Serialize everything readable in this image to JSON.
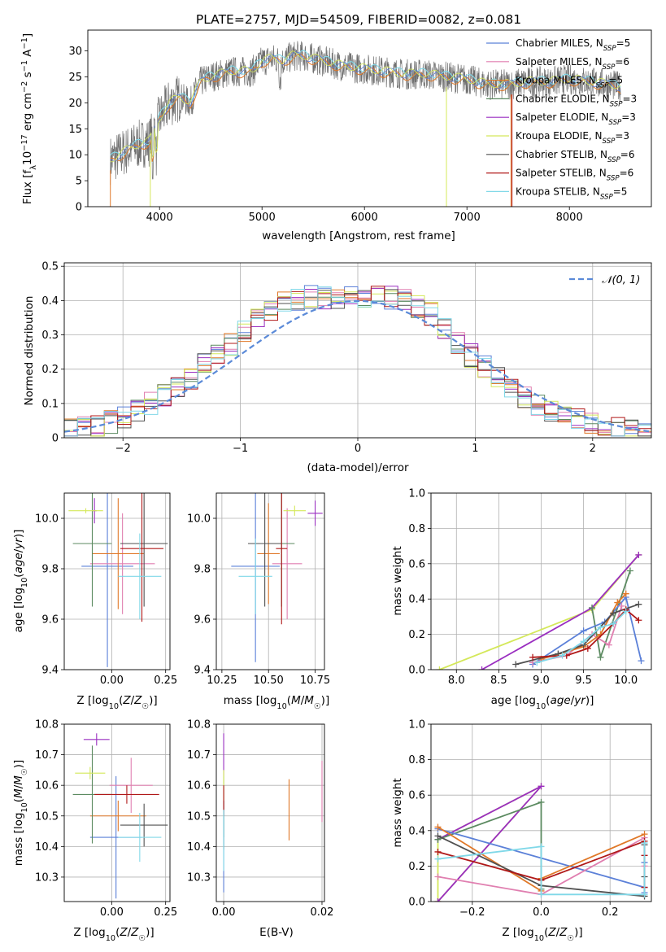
{
  "colors": {
    "Chabrier MILES": "#5b80d8",
    "Salpeter MILES": "#e07fb0",
    "Kroupa MILES": "#e07828",
    "Chabrier ELODIE": "#5b8a60",
    "Salpeter ELODIE": "#9a2ec0",
    "Kroupa ELODIE": "#d4e85a",
    "Chabrier STELIB": "#505050",
    "Salpeter STELIB": "#b01818",
    "Kroupa STELIB": "#80d8e8",
    "gaussian": "#5b8ad8"
  },
  "chart_data": [
    {
      "id": "spectrum",
      "type": "line",
      "title": "PLATE=2757, MJD=54509, FIBERID=0082, z=0.081",
      "xlabel": "wavelength [Angstrom, rest frame]",
      "ylabel": "Flux [fλ10⁻¹⁷ erg cm⁻² s⁻¹ A⁻¹]",
      "xlim": [
        3300,
        8800
      ],
      "ylim": [
        0,
        34
      ],
      "xticks": [
        4000,
        5000,
        6000,
        7000,
        8000
      ],
      "yticks": [
        0,
        5,
        10,
        15,
        20,
        25,
        30
      ],
      "grid": false,
      "legend_position": "top-right",
      "legend": [
        {
          "label": "Chabrier MILES, N",
          "sub": "SSP",
          "n": "=5",
          "color": "#5b80d8"
        },
        {
          "label": "Salpeter MILES, N",
          "sub": "SSP",
          "n": "=6",
          "color": "#e07fb0"
        },
        {
          "label": "Kroupa MILES, N",
          "sub": "SSP",
          "n": "=5",
          "color": "#e07828"
        },
        {
          "label": "Chabrier ELODIE, N",
          "sub": "SSP",
          "n": "=3",
          "color": "#5b8a60"
        },
        {
          "label": "Salpeter ELODIE, N",
          "sub": "SSP",
          "n": "=3",
          "color": "#9a2ec0"
        },
        {
          "label": "Kroupa ELODIE, N",
          "sub": "SSP",
          "n": "=3",
          "color": "#d4e85a"
        },
        {
          "label": "Chabrier STELIB, N",
          "sub": "SSP",
          "n": "=6",
          "color": "#505050"
        },
        {
          "label": "Salpeter STELIB, N",
          "sub": "SSP",
          "n": "=6",
          "color": "#b01818"
        },
        {
          "label": "Kroupa STELIB, N",
          "sub": "SSP",
          "n": "=5",
          "color": "#80d8e8"
        }
      ],
      "continuum": {
        "x": [
          3520,
          3700,
          3800,
          3900,
          4000,
          4100,
          4200,
          4300,
          4400,
          4500,
          4600,
          4700,
          4800,
          4900,
          5000,
          5100,
          5200,
          5300,
          5400,
          5500,
          5600,
          5800,
          6000,
          6200,
          6400,
          6600,
          6800,
          7000,
          7200,
          7400,
          7600,
          7800,
          8000,
          8200,
          8400,
          8500
        ],
        "y": [
          9,
          11,
          12,
          12.5,
          17,
          20,
          21,
          20,
          24,
          25,
          25.5,
          26,
          26,
          26,
          28,
          28.5,
          28,
          29,
          29,
          28.5,
          28,
          27,
          26.5,
          26,
          25.5,
          25.5,
          25,
          24.5,
          23.5,
          23.5,
          24,
          24,
          24.5,
          24,
          23.5,
          23
        ]
      }
    },
    {
      "id": "residuals",
      "type": "step",
      "xlabel": "(data-model)/error",
      "ylabel": "Normed distribution",
      "xlim": [
        -2.5,
        2.5
      ],
      "ylim": [
        0,
        0.51
      ],
      "xticks": [
        -2,
        -1,
        0,
        1,
        2
      ],
      "yticks": [
        0.0,
        0.1,
        0.2,
        0.3,
        0.4,
        0.5
      ],
      "grid": true,
      "legend_position": "top-right",
      "legend": [
        {
          "label": "𝒩(0, 1)",
          "color": "#5b8ad8",
          "style": "dashed"
        }
      ],
      "base_curve": [
        0.02,
        0.03,
        0.035,
        0.045,
        0.06,
        0.08,
        0.1,
        0.12,
        0.15,
        0.17,
        0.21,
        0.24,
        0.27,
        0.31,
        0.35,
        0.37,
        0.39,
        0.4,
        0.41,
        0.41,
        0.4,
        0.41,
        0.41,
        0.42,
        0.41,
        0.4,
        0.38,
        0.36,
        0.32,
        0.28,
        0.24,
        0.21,
        0.18,
        0.15,
        0.12,
        0.1,
        0.08,
        0.065,
        0.05,
        0.04,
        0.03,
        0.025,
        0.02,
        0.02
      ]
    },
    {
      "id": "age-vs-Z",
      "type": "errorbar",
      "xlabel": "Z [log₁₀(Z/Z☉)]",
      "ylabel": "age  [log₁₀(age/yr)]",
      "xlim": [
        -0.22,
        0.27
      ],
      "ylim": [
        9.4,
        10.1
      ],
      "xticks": [
        0.0,
        0.25
      ],
      "xticklabels": [
        "0.00",
        "0.25"
      ],
      "yticks": [
        9.4,
        9.6,
        9.8,
        10.0
      ],
      "yticklabels": [
        "9.4",
        "9.6",
        "9.8",
        "10.0"
      ],
      "grid": true,
      "points": [
        {
          "series": "Chabrier MILES",
          "x": -0.02,
          "xerr": 0.12,
          "y": 9.81,
          "yerr": 0.4
        },
        {
          "series": "Salpeter MILES",
          "x": 0.05,
          "xerr": 0.15,
          "y": 9.82,
          "yerr": 0.2
        },
        {
          "series": "Kroupa MILES",
          "x": 0.03,
          "xerr": 0.12,
          "y": 9.86,
          "yerr": 0.22
        },
        {
          "series": "Chabrier ELODIE",
          "x": -0.09,
          "xerr": 0.09,
          "y": 9.9,
          "yerr": 0.25
        },
        {
          "series": "Salpeter ELODIE",
          "x": -0.08,
          "xerr": 0.01,
          "y": 10.03,
          "yerr": 0.05
        },
        {
          "series": "Kroupa ELODIE",
          "x": -0.12,
          "xerr": 0.08,
          "y": 10.03,
          "yerr": 0.01
        },
        {
          "series": "Chabrier STELIB",
          "x": 0.15,
          "xerr": 0.11,
          "y": 9.9,
          "yerr": 0.25
        },
        {
          "series": "Salpeter STELIB",
          "x": 0.14,
          "xerr": 0.1,
          "y": 9.88,
          "yerr": 0.29
        },
        {
          "series": "Kroupa STELIB",
          "x": 0.13,
          "xerr": 0.1,
          "y": 9.77,
          "yerr": 0.17
        }
      ]
    },
    {
      "id": "age-vs-mass",
      "type": "errorbar",
      "xlabel": "mass [log₁₀(M/M☉)]",
      "ylabel": "",
      "xlim": [
        10.22,
        10.8
      ],
      "ylim": [
        9.4,
        10.1
      ],
      "xticks": [
        10.25,
        10.5,
        10.75
      ],
      "xticklabels": [
        "10.25",
        "10.50",
        "10.75"
      ],
      "yticks": [
        9.4,
        9.6,
        9.8,
        10.0
      ],
      "yticklabels": [
        "9.4",
        "9.6",
        "9.8",
        "10.0"
      ],
      "grid": true,
      "points": [
        {
          "series": "Chabrier MILES",
          "x": 10.43,
          "xerr": 0.13,
          "y": 9.81,
          "yerr": 0.38
        },
        {
          "series": "Salpeter MILES",
          "x": 10.6,
          "xerr": 0.08,
          "y": 9.82,
          "yerr": 0.22
        },
        {
          "series": "Kroupa MILES",
          "x": 10.5,
          "xerr": 0.06,
          "y": 9.86,
          "yerr": 0.2
        },
        {
          "series": "Chabrier ELODIE",
          "x": 10.57,
          "xerr": 0.07,
          "y": 9.9,
          "yerr": 0.25
        },
        {
          "series": "Salpeter ELODIE",
          "x": 10.75,
          "xerr": 0.04,
          "y": 10.02,
          "yerr": 0.05
        },
        {
          "series": "Kroupa ELODIE",
          "x": 10.64,
          "xerr": 0.06,
          "y": 10.03,
          "yerr": 0.02
        },
        {
          "series": "Chabrier STELIB",
          "x": 10.48,
          "xerr": 0.09,
          "y": 9.9,
          "yerr": 0.25
        },
        {
          "series": "Salpeter STELIB",
          "x": 10.57,
          "xerr": 0.03,
          "y": 9.88,
          "yerr": 0.3
        },
        {
          "series": "Kroupa STELIB",
          "x": 10.43,
          "xerr": 0.09,
          "y": 9.77,
          "yerr": 0.15
        }
      ]
    },
    {
      "id": "mass-weight-vs-age",
      "type": "line",
      "xlabel": "age  [log₁₀(age/yr)]",
      "ylabel": "mass weight",
      "xlim": [
        7.7,
        10.3
      ],
      "ylim": [
        0,
        1.0
      ],
      "xticks": [
        8.0,
        8.5,
        9.0,
        9.5,
        10.0
      ],
      "xticklabels": [
        "8.0",
        "8.5",
        "9.0",
        "9.5",
        "10.0"
      ],
      "yticks": [
        0.0,
        0.2,
        0.4,
        0.6,
        0.8,
        1.0
      ],
      "yticklabels": [
        "0.0",
        "0.2",
        "0.4",
        "0.6",
        "0.8",
        "1.0"
      ],
      "grid": true,
      "series": [
        {
          "name": "Kroupa ELODIE",
          "x": [
            7.8,
            9.6,
            10.15
          ],
          "y": [
            0.0,
            0.34,
            0.65
          ]
        },
        {
          "name": "Salpeter ELODIE",
          "x": [
            8.3,
            9.6,
            10.15
          ],
          "y": [
            0.0,
            0.35,
            0.65
          ]
        },
        {
          "name": "Chabrier ELODIE",
          "x": [
            9.6,
            9.7,
            10.05
          ],
          "y": [
            0.35,
            0.07,
            0.56
          ]
        },
        {
          "name": "Chabrier MILES",
          "x": [
            8.9,
            9.5,
            9.75,
            10.0,
            10.18
          ],
          "y": [
            0.03,
            0.22,
            0.27,
            0.41,
            0.05
          ]
        },
        {
          "name": "Salpeter MILES",
          "x": [
            8.9,
            9.3,
            9.6,
            9.8,
            9.95
          ],
          "y": [
            0.04,
            0.08,
            0.2,
            0.14,
            0.36
          ]
        },
        {
          "name": "Kroupa MILES",
          "x": [
            9.0,
            9.5,
            9.7,
            9.9,
            10.0
          ],
          "y": [
            0.06,
            0.13,
            0.2,
            0.38,
            0.43
          ]
        },
        {
          "name": "Chabrier STELIB",
          "x": [
            8.7,
            9.2,
            9.5,
            9.85,
            10.15
          ],
          "y": [
            0.03,
            0.09,
            0.14,
            0.32,
            0.37
          ]
        },
        {
          "name": "Salpeter STELIB",
          "x": [
            8.9,
            9.3,
            9.55,
            9.85,
            10.0,
            10.15
          ],
          "y": [
            0.07,
            0.08,
            0.12,
            0.26,
            0.34,
            0.28
          ]
        },
        {
          "name": "Kroupa STELIB",
          "x": [
            8.95,
            9.25,
            9.5,
            9.7,
            9.85,
            10.0
          ],
          "y": [
            0.04,
            0.08,
            0.16,
            0.24,
            0.26,
            0.33
          ]
        }
      ]
    },
    {
      "id": "mass-vs-Z",
      "type": "errorbar",
      "xlabel": "Z [log₁₀(Z/Z☉)]",
      "ylabel": "mass [log₁₀(M/M☉)]",
      "xlim": [
        -0.22,
        0.27
      ],
      "ylim": [
        10.22,
        10.8
      ],
      "xticks": [
        0.0,
        0.25
      ],
      "xticklabels": [
        "0.00",
        "0.25"
      ],
      "yticks": [
        10.3,
        10.4,
        10.5,
        10.6,
        10.7,
        10.8
      ],
      "yticklabels": [
        "10.3",
        "10.4",
        "10.5",
        "10.6",
        "10.7",
        "10.8"
      ],
      "grid": true,
      "points": [
        {
          "series": "Chabrier MILES",
          "x": 0.02,
          "xerr": 0.12,
          "y": 10.43,
          "yerr": 0.2
        },
        {
          "series": "Salpeter MILES",
          "x": 0.09,
          "xerr": 0.1,
          "y": 10.6,
          "yerr": 0.09
        },
        {
          "series": "Kroupa MILES",
          "x": 0.03,
          "xerr": 0.13,
          "y": 10.5,
          "yerr": 0.05
        },
        {
          "series": "Chabrier ELODIE",
          "x": -0.09,
          "xerr": 0.09,
          "y": 10.57,
          "yerr": 0.16
        },
        {
          "series": "Salpeter ELODIE",
          "x": -0.07,
          "xerr": 0.06,
          "y": 10.75,
          "yerr": 0.02
        },
        {
          "series": "Kroupa ELODIE",
          "x": -0.1,
          "xerr": 0.07,
          "y": 10.64,
          "yerr": 0.02
        },
        {
          "series": "Chabrier STELIB",
          "x": 0.15,
          "xerr": 0.11,
          "y": 10.47,
          "yerr": 0.07
        },
        {
          "series": "Salpeter STELIB",
          "x": 0.07,
          "xerr": 0.15,
          "y": 10.57,
          "yerr": 0.03
        },
        {
          "series": "Kroupa STELIB",
          "x": 0.13,
          "xerr": 0.1,
          "y": 10.43,
          "yerr": 0.08
        }
      ]
    },
    {
      "id": "mass-vs-EBV",
      "type": "errorbar",
      "xlabel": "E(B-V)",
      "ylabel": "",
      "xlim": [
        -0.0015,
        0.0205
      ],
      "ylim": [
        10.22,
        10.8
      ],
      "xticks": [
        0.0,
        0.02
      ],
      "xticklabels": [
        "0.00",
        "0.02"
      ],
      "yticks": [
        10.3,
        10.4,
        10.5,
        10.6,
        10.7,
        10.8
      ],
      "yticklabels": [
        "10.3",
        "10.4",
        "10.5",
        "10.6",
        "10.7",
        "10.8"
      ],
      "grid": true,
      "points": [
        {
          "series": "Chabrier MILES",
          "x": 0.0,
          "xerr": 0,
          "y": 10.4,
          "yerr": 0.15
        },
        {
          "series": "Salpeter MILES",
          "x": 0.02,
          "xerr": 0,
          "y": 10.58,
          "yerr": 0.1
        },
        {
          "series": "Kroupa MILES",
          "x": 0.0133,
          "xerr": 0,
          "y": 10.52,
          "yerr": 0.1
        },
        {
          "series": "Chabrier ELODIE",
          "x": 0.0,
          "xerr": 0,
          "y": 10.53,
          "yerr": 0.1
        },
        {
          "series": "Salpeter ELODIE",
          "x": 0.0,
          "xerr": 0,
          "y": 10.7,
          "yerr": 0.07
        },
        {
          "series": "Kroupa ELODIE",
          "x": 0.0,
          "xerr": 0,
          "y": 10.6,
          "yerr": 0.05
        },
        {
          "series": "Chabrier STELIB",
          "x": 0.0,
          "xerr": 0,
          "y": 10.47,
          "yerr": 0.08
        },
        {
          "series": "Salpeter STELIB",
          "x": 0.0,
          "xerr": 0,
          "y": 10.55,
          "yerr": 0.05
        },
        {
          "series": "Kroupa STELIB",
          "x": 0.0,
          "xerr": 0,
          "y": 10.42,
          "yerr": 0.1
        }
      ]
    },
    {
      "id": "mass-weight-vs-Z",
      "type": "line",
      "xlabel": "Z [log₁₀(Z/Z☉)]",
      "ylabel": "mass weight",
      "xlim": [
        -0.32,
        0.32
      ],
      "ylim": [
        0,
        1.0
      ],
      "xticks": [
        -0.2,
        0.0,
        0.2
      ],
      "xticklabels": [
        "−0.2",
        "0.0",
        "0.2"
      ],
      "yticks": [
        0.0,
        0.2,
        0.4,
        0.6,
        0.8,
        1.0
      ],
      "yticklabels": [
        "0.0",
        "0.2",
        "0.4",
        "0.6",
        "0.8",
        "1.0"
      ],
      "grid": true,
      "series": [
        {
          "name": "Kroupa ELODIE",
          "x": [
            -0.3,
            -0.3,
            0.0,
            -0.3
          ],
          "y": [
            0.0,
            0.35,
            0.65,
            0.0
          ]
        },
        {
          "name": "Salpeter ELODIE",
          "x": [
            -0.3,
            0.0,
            -0.3
          ],
          "y": [
            0.0,
            0.65,
            0.35
          ]
        },
        {
          "name": "Chabrier ELODIE",
          "x": [
            -0.3,
            0.0,
            0.0
          ],
          "y": [
            0.35,
            0.56,
            0.07
          ]
        },
        {
          "name": "Chabrier MILES",
          "x": [
            -0.3,
            0.3,
            0.3,
            0.3
          ],
          "y": [
            0.41,
            0.08,
            0.05,
            0.22
          ]
        },
        {
          "name": "Salpeter MILES",
          "x": [
            -0.3,
            0.0,
            0.3,
            0.3,
            0.3
          ],
          "y": [
            0.14,
            0.04,
            0.36,
            0.2,
            0.08
          ]
        },
        {
          "name": "Kroupa MILES",
          "x": [
            -0.3,
            0.0,
            0.0,
            0.3
          ],
          "y": [
            0.42,
            0.06,
            0.13,
            0.38
          ]
        },
        {
          "name": "Chabrier STELIB",
          "x": [
            -0.3,
            0.0,
            0.3,
            0.3,
            0.3
          ],
          "y": [
            0.37,
            0.09,
            0.03,
            0.14,
            0.32
          ]
        },
        {
          "name": "Salpeter STELIB",
          "x": [
            -0.3,
            0.0,
            0.3,
            0.3,
            0.3
          ],
          "y": [
            0.28,
            0.12,
            0.34,
            0.08,
            0.26
          ]
        },
        {
          "name": "Kroupa STELIB",
          "x": [
            -0.3,
            0.0,
            0.0,
            0.3,
            0.3
          ],
          "y": [
            0.24,
            0.31,
            0.04,
            0.04,
            0.33
          ]
        }
      ]
    }
  ]
}
